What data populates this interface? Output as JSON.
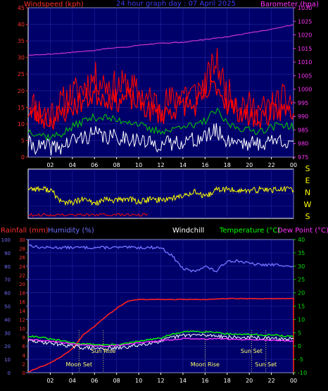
{
  "colors": {
    "background": "#000000",
    "plot_bg": "#00006b",
    "frame": "#ffffff",
    "grid": "#2424a0",
    "windspeed": "#ff0000",
    "gust": "#ff0000",
    "wind_avg": "#ffffff",
    "wind_green": "#00d000",
    "barometer": "#cc33cc",
    "wind_dir": "#ffff00",
    "dir_red": "#ff0000",
    "rainfall": "#ff2020",
    "humidity": "#7070ff",
    "windchill": "#ffffff",
    "temperature": "#00ff00",
    "dewpoint": "#ff33ff",
    "event": "#ffff66",
    "green_axis": "#00e000",
    "left_axis_top": "#ff3030",
    "left_axis_bottom": "#7070ff",
    "right_axis_top": "#ff33ff",
    "compass": "#ffff00"
  },
  "top_title": "24 hour graph day : 07 April 2025",
  "hours": [
    "02",
    "04",
    "06",
    "08",
    "10",
    "12",
    "14",
    "16",
    "18",
    "20",
    "22",
    "00"
  ],
  "chart_data": [
    {
      "type": "line",
      "title": "24 hour graph day : 07 April 2025",
      "ylabel_left": "Windspeed (kph)",
      "ylabel_right": "Barometer (hpa)",
      "ylim_left": [
        0,
        45
      ],
      "ylim_right": [
        975,
        1030
      ],
      "yticks_left": [
        0,
        5,
        10,
        15,
        20,
        25,
        30,
        35,
        40,
        45
      ],
      "yticks_right": [
        975,
        980,
        985,
        990,
        995,
        1000,
        1005,
        1010,
        1015,
        1020,
        1025,
        1030
      ],
      "x": [
        0,
        1,
        2,
        3,
        4,
        5,
        6,
        7,
        8,
        9,
        10,
        11,
        12,
        13,
        14,
        15,
        16,
        17,
        18,
        19,
        20,
        21,
        22,
        23,
        24
      ],
      "series": [
        {
          "name": "Barometer (hpa)",
          "axis": "right",
          "values": [
            1012.5,
            1012.7,
            1013,
            1013.2,
            1013.6,
            1013.9,
            1014.3,
            1014.9,
            1015.3,
            1015.6,
            1016.3,
            1016.6,
            1017,
            1017.1,
            1017.3,
            1017.8,
            1018.3,
            1018.8,
            1019.3,
            1020,
            1020.8,
            1021.4,
            1022.1,
            1023,
            1023.7
          ]
        },
        {
          "name": "Windspeed (kph)",
          "axis": "left",
          "values": [
            14,
            12,
            11,
            13,
            15,
            17,
            19,
            18,
            17,
            18,
            16,
            14,
            13,
            14,
            16,
            15,
            18,
            22,
            16,
            14,
            12,
            12,
            13,
            14,
            14
          ]
        },
        {
          "name": "Gust",
          "axis": "left",
          "values": [
            17,
            14,
            13,
            16,
            19,
            21,
            24,
            22,
            21,
            22,
            19,
            17,
            16,
            17,
            20,
            19,
            22,
            29,
            19,
            17,
            15,
            14,
            15,
            17,
            17
          ]
        },
        {
          "name": "Average",
          "axis": "left",
          "values": [
            8,
            7,
            6,
            7,
            9,
            11,
            12,
            12,
            11,
            11,
            10,
            8,
            8,
            8,
            10,
            9,
            11,
            14,
            10,
            9,
            8,
            8,
            9,
            10,
            9
          ]
        },
        {
          "name": "Low",
          "axis": "left",
          "values": [
            4,
            3,
            3,
            3,
            5,
            6,
            7,
            6,
            6,
            6,
            5,
            4,
            4,
            4,
            5,
            5,
            6,
            8,
            5,
            5,
            4,
            4,
            5,
            5,
            5
          ]
        }
      ]
    },
    {
      "type": "line",
      "title": "",
      "compass_labels": [
        "S",
        "E",
        "N",
        "W",
        "S"
      ],
      "ylim": [
        0,
        360
      ],
      "x": [
        0,
        1,
        2,
        3,
        4,
        5,
        6,
        7,
        8,
        9,
        10,
        11,
        12,
        13,
        14,
        15,
        16,
        17,
        18,
        19,
        20,
        21,
        22,
        23,
        24
      ],
      "series": [
        {
          "name": "Wind direction",
          "values": [
            220,
            215,
            210,
            120,
            115,
            140,
            110,
            135,
            130,
            145,
            120,
            140,
            135,
            150,
            160,
            200,
            150,
            210,
            210,
            205,
            200,
            210,
            210,
            212,
            212
          ]
        }
      ]
    },
    {
      "type": "line",
      "title": "",
      "labels_left": [
        "Rainfall (mm)",
        "Humidity (%)"
      ],
      "labels_right": [
        "Windchill",
        "Temperature (°C)",
        "Dew Point (°C)"
      ],
      "ylim_humidity": [
        0,
        100
      ],
      "ylim_rain": [
        0,
        30
      ],
      "ylim_temp": [
        -10,
        40
      ],
      "yticks_humidity": [
        0,
        10,
        20,
        30,
        40,
        50,
        60,
        70,
        80,
        90,
        100
      ],
      "yticks_rain": [
        0,
        2,
        4,
        6,
        8,
        10,
        12,
        14,
        16,
        18,
        20,
        22,
        24,
        26,
        28,
        30
      ],
      "yticks_temp": [
        -10,
        -5,
        0,
        5,
        10,
        15,
        20,
        25,
        30,
        35,
        40
      ],
      "x": [
        0,
        1,
        2,
        3,
        4,
        5,
        6,
        7,
        8,
        9,
        10,
        11,
        12,
        13,
        14,
        15,
        16,
        17,
        18,
        19,
        20,
        21,
        22,
        23,
        24
      ],
      "series": [
        {
          "name": "Humidity (%)",
          "axis": "humidity",
          "values": [
            96,
            94,
            94,
            94,
            94,
            94,
            94,
            94,
            94,
            94,
            94,
            94,
            94,
            88,
            78,
            76,
            80,
            76,
            84,
            84,
            82,
            81,
            81,
            81,
            79
          ]
        },
        {
          "name": "Rainfall (mm)",
          "axis": "rain",
          "values": [
            0.2,
            1.2,
            2.2,
            3.6,
            5.4,
            8.6,
            10.4,
            12.6,
            14.5,
            16.1,
            16.5,
            16.5,
            16.5,
            16.5,
            16.5,
            16.5,
            16.5,
            16.6,
            16.7,
            16.7,
            16.7,
            16.7,
            16.7,
            16.7,
            16.7
          ]
        },
        {
          "name": "Temperature (°C)",
          "axis": "temp",
          "values": [
            3.8,
            3.4,
            2.6,
            2.0,
            1.2,
            0.8,
            0.6,
            0.4,
            0.6,
            1.0,
            1.8,
            2.4,
            3.0,
            4.4,
            5.2,
            5.6,
            5.4,
            5.2,
            4.6,
            4.4,
            4.4,
            4.2,
            4.2,
            3.8,
            3.6
          ]
        },
        {
          "name": "Dew Point (°C)",
          "axis": "temp",
          "values": [
            2.6,
            2.2,
            1.8,
            1.4,
            0.8,
            0.4,
            0.2,
            0.0,
            0.2,
            0.6,
            1.2,
            1.6,
            2.0,
            2.4,
            2.8,
            2.8,
            2.6,
            2.8,
            2.6,
            2.4,
            2.4,
            2.2,
            2.2,
            2.0,
            1.8
          ]
        },
        {
          "name": "Windchill",
          "axis": "temp",
          "values": [
            2.0,
            1.6,
            1.2,
            0.6,
            -0.2,
            -0.6,
            -0.8,
            -1.0,
            -0.8,
            -0.4,
            0.4,
            1.2,
            1.8,
            3.2,
            4.0,
            4.2,
            4.0,
            4.0,
            3.4,
            3.2,
            3.2,
            3.0,
            2.8,
            2.6,
            2.6
          ]
        }
      ],
      "annotations": [
        {
          "text": "Moon Set",
          "hour": 4.6
        },
        {
          "text": "Sun Rise",
          "hour": 6.8
        },
        {
          "text": "Moon Rise",
          "hour": 16.0
        },
        {
          "text": "Sun Set",
          "hour": 20.2
        },
        {
          "text": "Sun Set",
          "hour": 21.5
        }
      ]
    }
  ]
}
